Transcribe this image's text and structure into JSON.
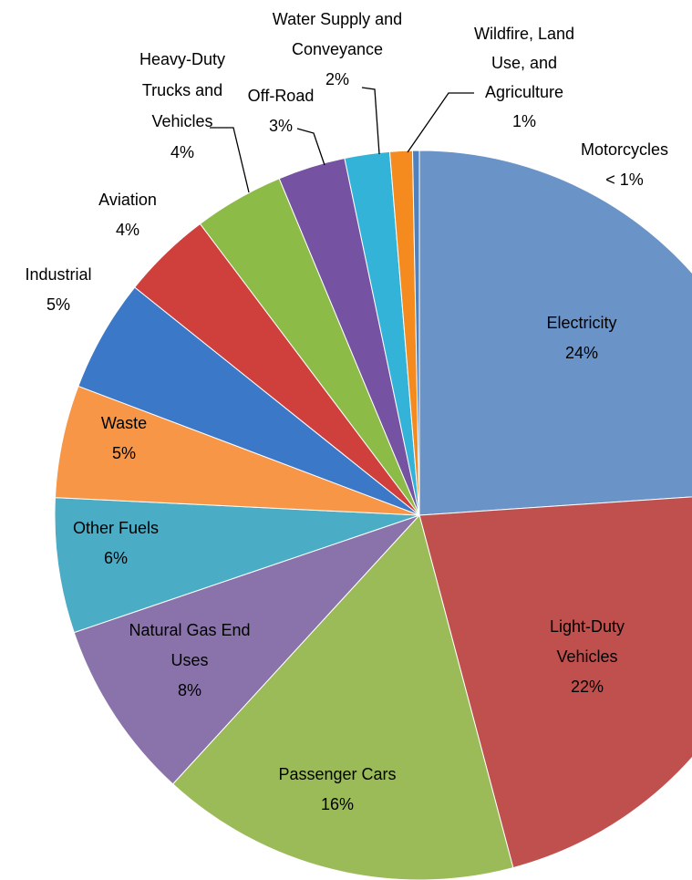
{
  "chart_data": {
    "type": "pie",
    "categories": [
      "Electricity",
      "Light-Duty Vehicles",
      "Passenger Cars",
      "Natural Gas End Uses",
      "Other Fuels",
      "Waste",
      "Industrial",
      "Aviation",
      "Heavy-Duty Trucks and Vehicles",
      "Off-Road",
      "Water Supply and Conveyance",
      "Wildfire, Land Use, and Agriculture",
      "Motorcycles"
    ],
    "values": [
      24,
      22,
      16,
      8,
      6,
      5,
      5,
      4,
      4,
      3,
      2,
      1,
      0.3
    ],
    "value_labels": [
      "24%",
      "22%",
      "16%",
      "8%",
      "6%",
      "5%",
      "5%",
      "4%",
      "4%",
      "3%",
      "2%",
      "1%",
      "< 1%"
    ],
    "colors": [
      "#6a93c8",
      "#c0504d",
      "#9bbb59",
      "#8a73ab",
      "#4bacc6",
      "#f79646",
      "#3c78c8",
      "#cf403c",
      "#8cbc47",
      "#7552a2",
      "#34b3d8",
      "#f58a1f",
      "#4f81bd"
    ]
  }
}
